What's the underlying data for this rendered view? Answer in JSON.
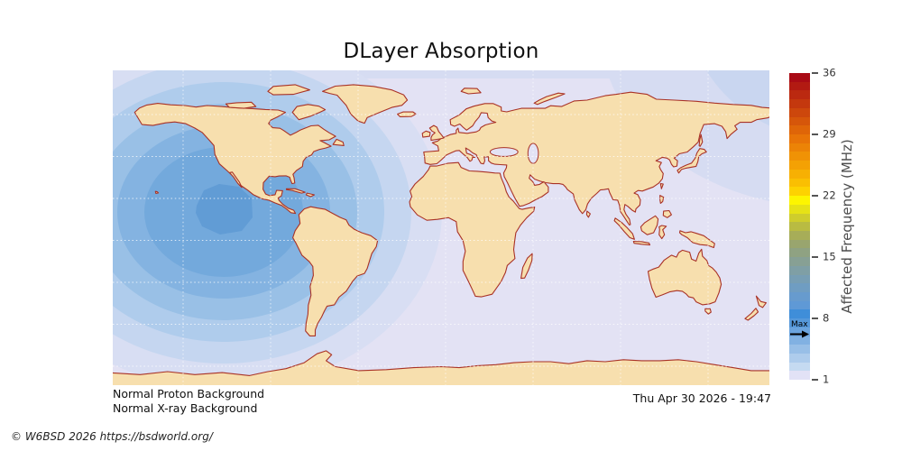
{
  "title": "DLayer Absorption",
  "colorbar": {
    "label": "Affected Frequency (MHz)",
    "ticks": [
      "36",
      "29",
      "22",
      "15",
      "8",
      "1"
    ],
    "tick_values": [
      36,
      29,
      22,
      15,
      8,
      1
    ],
    "range_mhz": [
      1,
      36
    ],
    "max_label": "Max",
    "max_value_mhz": 6,
    "segments_top_to_bottom": [
      "#a90b15",
      "#b21a12",
      "#bb2910",
      "#c4380e",
      "#cd470c",
      "#d6560a",
      "#df6508",
      "#e87407",
      "#ec8306",
      "#f09205",
      "#f4a104",
      "#f7b003",
      "#fabf02",
      "#fdd201",
      "#fdf500",
      "#e6e216",
      "#cfcd2c",
      "#b9bb42",
      "#a7ad58",
      "#99a56e",
      "#8fa282",
      "#87a094",
      "#7f9fa5",
      "#779eb4",
      "#6f9dc2",
      "#679bce",
      "#5f99d6",
      "#3f8ed9",
      "#5598da",
      "#6ba4de",
      "#81b1e2",
      "#98bfe7",
      "#aeccec",
      "#c5daf1",
      "#e2e2f6"
    ]
  },
  "map": {
    "projection": "equirectangular-world",
    "ocean_color": "#e3e2f4",
    "land_color": "#f7dfae",
    "coast_color": "#a93226",
    "grid_color": "rgba(255,255,255,0.75)",
    "absorption_ring_colors_outer_to_inner": [
      "#d8def3",
      "#c5d6f0",
      "#afccec",
      "#99c0e6",
      "#84b3e1",
      "#73a9dc"
    ],
    "absorption_core_color": "#619cd5",
    "polar_wrap_colors": [
      "#d6dcf2",
      "#c9d6f0"
    ],
    "absorption_center": {
      "lon": -119,
      "lat": 9
    }
  },
  "status": {
    "proton": "Normal Proton Background",
    "xray": "Normal X-ray Background",
    "timestamp": "Thu Apr 30 2026 - 19:47"
  },
  "copyright": "© W6BSD 2026 https://bsdworld.org/"
}
